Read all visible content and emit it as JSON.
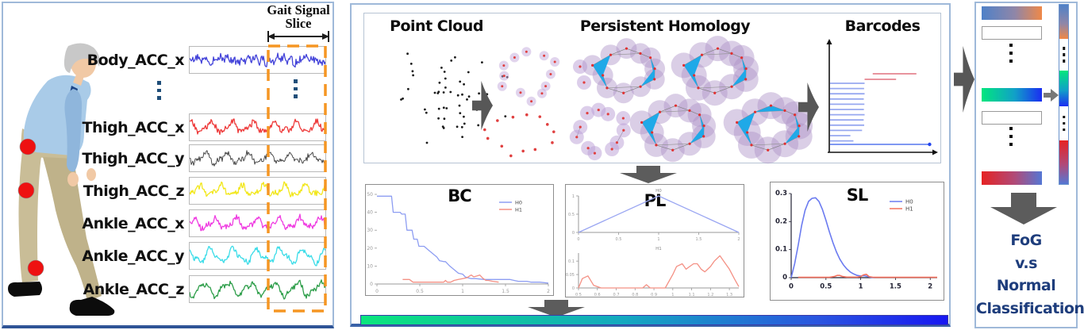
{
  "figure": {
    "left_panel": {
      "slice_label_line1": "Gait Signal",
      "slice_label_line2": "Slice",
      "signals": [
        {
          "label": "Body_ACC_x",
          "color": "#4343d9",
          "style": "dense",
          "seed": 3
        },
        {
          "label": "Thigh_ACC_x",
          "color": "#ee3a3a",
          "style": "wavy",
          "seed": 11
        },
        {
          "label": "Thigh_ACC_y",
          "color": "#3a3a3a",
          "style": "wavy",
          "seed": 19
        },
        {
          "label": "Thigh_ACC_z",
          "color": "#f2e71c",
          "style": "wavy",
          "seed": 27
        },
        {
          "label": "Ankle_ACC_x",
          "color": "#ef3ce1",
          "style": "wavy",
          "seed": 35
        },
        {
          "label": "Ankle_ACC_y",
          "color": "#3adce8",
          "style": "spiky",
          "seed": 43
        },
        {
          "label": "Ankle_ACC_z",
          "color": "#2e9e4a",
          "style": "spiky",
          "seed": 51
        }
      ],
      "slice_box_color": "#F59623",
      "sensor_color": "#ee1111"
    },
    "pipeline_panel": {
      "stage_titles": [
        "Point Cloud",
        "Persistent Homology",
        "Barcodes"
      ]
    },
    "output_panel": {
      "classification_lines": [
        "FoG",
        "v.s",
        "Normal",
        "Classification"
      ],
      "text_color": "#1e3d7c",
      "bars": [
        {
          "kind": "gradient",
          "from": "#4f81c8",
          "via": "#8f86a8",
          "to": "#ef8848"
        },
        {
          "kind": "empty"
        },
        {
          "kind": "dots"
        },
        {
          "kind": "gradient",
          "from": "#02e67e",
          "via": "#11a0c8",
          "to": "#1b2df2"
        },
        {
          "kind": "empty"
        },
        {
          "kind": "dots"
        },
        {
          "kind": "gradient",
          "from": "#e62323",
          "via": "#b04a78",
          "to": "#5577d4"
        }
      ]
    },
    "gradient_bar": {
      "from": "#0be57c",
      "via": "#14a8c0",
      "to": "#1717f2"
    }
  },
  "chart_data": [
    {
      "id": "bc",
      "type": "line",
      "title": "BC",
      "xlim": [
        0,
        2
      ],
      "ylim": [
        0,
        50
      ],
      "xticks": [
        "0",
        "0.5",
        "1",
        "1.5",
        "2"
      ],
      "yticks": [
        "0",
        "10",
        "20",
        "30",
        "40",
        "50"
      ],
      "legend": [
        {
          "name": "H0",
          "color": "#8d9df2"
        },
        {
          "name": "H1",
          "color": "#f49084"
        }
      ],
      "series": [
        {
          "name": "H0",
          "color": "#8d9df2",
          "x": [
            0,
            0.17,
            0.19,
            0.27,
            0.29,
            0.33,
            0.35,
            0.41,
            0.43,
            0.47,
            0.49,
            0.55,
            0.6,
            0.65,
            0.7,
            0.73,
            0.78,
            0.8,
            0.85,
            0.9,
            0.95,
            1,
            1.03,
            1.06,
            1.1,
            1.15,
            1.25,
            1.35,
            1.45,
            1.55,
            1.6,
            1.65,
            1.75,
            1.8,
            1.9,
            2
          ],
          "y": [
            49,
            49,
            40,
            40,
            39,
            39,
            30,
            30,
            25,
            25,
            21,
            21,
            19,
            17,
            15,
            13,
            12.5,
            12.5,
            10,
            8,
            6,
            5.5,
            4,
            3.5,
            3,
            3,
            2.5,
            2.5,
            2.5,
            2.5,
            2,
            1.5,
            1.5,
            1,
            1,
            0.5
          ]
        },
        {
          "name": "H1",
          "color": "#f49084",
          "x": [
            0.3,
            0.38,
            0.42,
            0.5,
            0.62,
            0.72,
            0.78,
            0.8,
            0.82,
            0.86,
            0.9,
            0.95,
            1,
            1.05,
            1.1,
            1.13,
            1.17,
            1.2,
            1.23,
            1.27,
            1.3,
            1.35,
            1.42
          ],
          "y": [
            2.5,
            2.5,
            1,
            1,
            1,
            1,
            1,
            2,
            1,
            1,
            2,
            2.5,
            3,
            3.5,
            5,
            4,
            4.5,
            5,
            3.5,
            2,
            2,
            1.5,
            1
          ]
        }
      ]
    },
    {
      "id": "pl",
      "type": "line",
      "title": "PL",
      "subplots": [
        {
          "label": "H0",
          "xlim": [
            0,
            2
          ],
          "ylim": [
            0,
            1
          ],
          "xticks": [
            "0",
            "0.5",
            "1",
            "1.5",
            "2"
          ],
          "yticks": [
            "0",
            "0.5",
            "1"
          ],
          "series": [
            {
              "name": "H0",
              "color": "#9aa6f2",
              "x": [
                0,
                1,
                2
              ],
              "y": [
                0,
                1,
                0
              ]
            }
          ]
        },
        {
          "label": "H1",
          "xlim": [
            0.5,
            1.35
          ],
          "ylim": [
            0,
            0.13
          ],
          "xticks": [
            "0.5",
            "0.6",
            "0.7",
            "0.8",
            "0.9",
            "1",
            "1.1",
            "1.2",
            "1.3"
          ],
          "yticks": [
            "0",
            "0.05",
            "0.1"
          ],
          "series": [
            {
              "name": "H1",
              "color": "#f49084",
              "x": [
                0.5,
                0.52,
                0.55,
                0.58,
                0.62,
                0.84,
                0.86,
                0.88,
                0.9,
                0.96,
                1,
                1.02,
                1.05,
                1.07,
                1.09,
                1.11,
                1.13,
                1.15,
                1.17,
                1.2,
                1.22,
                1.25,
                1.27,
                1.3,
                1.33,
                1.35
              ],
              "y": [
                0,
                0.035,
                0.045,
                0.01,
                0,
                0,
                0.012,
                0,
                0,
                0,
                0.05,
                0.08,
                0.09,
                0.07,
                0.08,
                0.09,
                0.09,
                0.07,
                0.06,
                0.08,
                0.1,
                0.12,
                0.1,
                0.07,
                0.03,
                0.005
              ]
            }
          ]
        }
      ]
    },
    {
      "id": "sl",
      "type": "line",
      "title": "SL",
      "xlim": [
        0,
        2.1
      ],
      "ylim": [
        0,
        0.3
      ],
      "xticks": [
        "0",
        "0.5",
        "1",
        "1.5",
        "2"
      ],
      "yticks": [
        "0",
        "0.1",
        "0.2",
        "0.3"
      ],
      "legend": [
        {
          "name": "H0",
          "color": "#6b7bf0"
        },
        {
          "name": "H1",
          "color": "#f2705e"
        }
      ],
      "series": [
        {
          "name": "H0",
          "color": "#6b7bf0",
          "x": [
            0,
            0.05,
            0.1,
            0.15,
            0.2,
            0.25,
            0.3,
            0.35,
            0.4,
            0.45,
            0.5,
            0.55,
            0.6,
            0.65,
            0.7,
            0.75,
            0.8,
            0.85,
            0.9,
            0.95,
            1,
            1.05,
            1.1,
            1.15,
            1.2
          ],
          "y": [
            0,
            0.05,
            0.115,
            0.185,
            0.24,
            0.272,
            0.283,
            0.285,
            0.272,
            0.243,
            0.205,
            0.163,
            0.125,
            0.092,
            0.066,
            0.046,
            0.031,
            0.02,
            0.013,
            0.008,
            0.006,
            0.007,
            0.004,
            0.001,
            0
          ]
        },
        {
          "name": "H1",
          "color": "#f2705e",
          "x": [
            0.1,
            0.3,
            0.55,
            0.62,
            0.66,
            0.7,
            0.74,
            0.8,
            0.95,
            1,
            1.04,
            1.08,
            1.12,
            1.18,
            1.3,
            1.6,
            2.1
          ],
          "y": [
            0.001,
            0.001,
            0.001,
            0.004,
            0.008,
            0.008,
            0.004,
            0.002,
            0.002,
            0.004,
            0.01,
            0.012,
            0.004,
            0.001,
            0.001,
            0.001,
            0.001
          ]
        }
      ]
    },
    {
      "id": "barcodes",
      "type": "barcode",
      "h0_color": "#97a8f0",
      "h1_color": "#e0707e",
      "long_color": "#5577ee",
      "h0_bars": [
        0.34,
        0.335,
        0.34,
        0.332,
        0.338,
        0.333,
        0.34,
        0.331,
        0.336,
        0.315,
        0.2,
        0.23
      ],
      "h0_long": 0.98,
      "h1_bars": [
        {
          "birth": 0.42,
          "death": 0.85
        },
        {
          "birth": 0.34,
          "death": 0.65
        }
      ]
    }
  ]
}
